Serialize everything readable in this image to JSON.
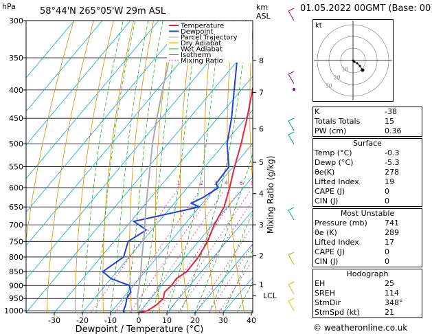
{
  "header": {
    "hpa_label": "hPa",
    "location": "58°44'N  265°05'W  29m  ASL",
    "km_label": "km",
    "asl_label": "ASL",
    "date": "01.05.2022  00GMT  (Base: 00)"
  },
  "chart_data": {
    "type": "line",
    "xlabel": "Dewpoint / Temperature (°C)",
    "ylabel_right": "Mixing Ratio (g/kg)",
    "pressure_levels": [
      300,
      350,
      400,
      450,
      500,
      550,
      600,
      650,
      700,
      750,
      800,
      850,
      900,
      950,
      1000
    ],
    "x_ticks": [
      -30,
      -20,
      -10,
      0,
      10,
      20,
      30,
      40
    ],
    "km_ticks": [
      {
        "km": "8",
        "p": 354
      },
      {
        "km": "7",
        "p": 404
      },
      {
        "km": "6",
        "p": 470
      },
      {
        "km": "5",
        "p": 540
      },
      {
        "km": "4",
        "p": 615
      },
      {
        "km": "3",
        "p": 700
      },
      {
        "km": "2",
        "p": 795
      },
      {
        "km": "1",
        "p": 897
      },
      {
        "km": "LCL",
        "p": 939
      }
    ],
    "mixing_ratio_labels": [
      "1",
      "2",
      "3",
      "4",
      "6",
      "8",
      "10",
      "15",
      "20",
      "25"
    ],
    "legend": [
      "Temperature",
      "Dewpoint",
      "Parcel Trajectory",
      "Dry Adiabat",
      "Wet Adiabat",
      "Isotherm",
      "Mixing Ratio"
    ],
    "series": [
      {
        "name": "Temperature",
        "color": "#e8213a",
        "points": [
          [
            1008,
            -0.3
          ],
          [
            1000,
            2.5
          ],
          [
            975,
            4.0
          ],
          [
            950,
            4.5
          ],
          [
            925,
            3.0
          ],
          [
            900,
            3.5
          ],
          [
            875,
            3.2
          ],
          [
            850,
            4.8
          ],
          [
            800,
            4.6
          ],
          [
            750,
            3.2
          ],
          [
            700,
            0.6
          ],
          [
            650,
            -1.2
          ],
          [
            600,
            -5.0
          ],
          [
            550,
            -9.5
          ],
          [
            500,
            -14.0
          ],
          [
            450,
            -19.5
          ],
          [
            400,
            -26.0
          ],
          [
            350,
            -33.5
          ],
          [
            300,
            -41.5
          ]
        ]
      },
      {
        "name": "Dewpoint",
        "color": "#1f3fe0",
        "points": [
          [
            1008,
            -5.3
          ],
          [
            1000,
            -6.0
          ],
          [
            975,
            -7.0
          ],
          [
            950,
            -8.5
          ],
          [
            925,
            -9.0
          ],
          [
            900,
            -11.5
          ],
          [
            875,
            -20.0
          ],
          [
            850,
            -25.0
          ],
          [
            800,
            -22.0
          ],
          [
            750,
            -25.0
          ],
          [
            715,
            -22.0
          ],
          [
            690,
            -29.0
          ],
          [
            650,
            -10.0
          ],
          [
            640,
            -14.0
          ],
          [
            625,
            -11.5
          ],
          [
            600,
            -9.0
          ],
          [
            590,
            -11.0
          ],
          [
            550,
            -11.5
          ],
          [
            500,
            -19.0
          ],
          [
            450,
            -25.0
          ],
          [
            400,
            -32.5
          ],
          [
            350,
            -41.0
          ],
          [
            300,
            -49.0
          ]
        ]
      },
      {
        "name": "Parcel Trajectory",
        "color": "#aaaaaa",
        "points": [
          [
            1008,
            -0.3
          ],
          [
            939,
            -5.5
          ],
          [
            900,
            -8.0
          ],
          [
            850,
            -11.5
          ],
          [
            800,
            -15.5
          ],
          [
            750,
            -19.5
          ],
          [
            700,
            -24.0
          ],
          [
            650,
            -29.0
          ],
          [
            600,
            -34.0
          ],
          [
            550,
            -39.5
          ],
          [
            500,
            -45.5
          ],
          [
            450,
            -51.5
          ],
          [
            400,
            -58.0
          ],
          [
            350,
            -65.0
          ],
          [
            300,
            -72.0
          ]
        ]
      }
    ]
  },
  "hodograph": {
    "label": "kt",
    "ring_labels": [
      "10",
      "20",
      "30"
    ],
    "points": [
      [
        0,
        0
      ],
      [
        2,
        -2
      ],
      [
        6,
        -4
      ],
      [
        10,
        -8
      ],
      [
        14,
        -14
      ]
    ]
  },
  "indices": {
    "top": [
      {
        "label": "K",
        "value": "-38"
      },
      {
        "label": "Totals Totals",
        "value": "15"
      },
      {
        "label": "PW (cm)",
        "value": "0.36"
      }
    ],
    "surface_title": "Surface",
    "surface": [
      {
        "label": "Temp (°C)",
        "value": "-0.3"
      },
      {
        "label": "Dewp (°C)",
        "value": "-5.3"
      },
      {
        "label": "θe(K)",
        "value": "278"
      },
      {
        "label": "Lifted Index",
        "value": "19"
      },
      {
        "label": "CAPE (J)",
        "value": "0"
      },
      {
        "label": "CIN (J)",
        "value": "0"
      }
    ],
    "unstable_title": "Most Unstable",
    "unstable": [
      {
        "label": "Pressure (mb)",
        "value": "741"
      },
      {
        "label": "θe (K)",
        "value": "289"
      },
      {
        "label": "Lifted Index",
        "value": "17"
      },
      {
        "label": "CAPE (J)",
        "value": "0"
      },
      {
        "label": "CIN (J)",
        "value": "0"
      }
    ],
    "hodo_title": "Hodograph",
    "hodo": [
      {
        "label": "EH",
        "value": "25"
      },
      {
        "label": "SREH",
        "value": "114"
      },
      {
        "label": "StmDir",
        "value": "348°"
      },
      {
        "label": "StmSpd (kt)",
        "value": "21"
      }
    ]
  },
  "footer": "© weatheronline.co.uk",
  "colors": {
    "temperature": "#e8213a",
    "dewpoint": "#1f3fe0",
    "parcel": "#aaaaaa",
    "dry_adiabat": "#e08a00",
    "wet_adiabat": "#18b018",
    "isotherm": "#00a8e0",
    "mixing_ratio": "#e020a0"
  }
}
